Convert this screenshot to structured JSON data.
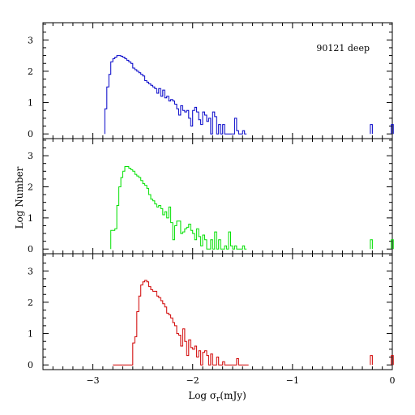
{
  "chart_data": {
    "type": "histogram",
    "xlabel_main": "Log σ",
    "xlabel_sub": "r",
    "xlabel_unit": "(mJy)",
    "ylabel": "Log Number",
    "xlim": [
      -3.5,
      0
    ],
    "ylim": [
      -0.15,
      3.55
    ],
    "x_ticks": [
      -3,
      -2,
      -1,
      0
    ],
    "x_tick_labels": [
      "−3",
      "−2",
      "−1",
      "0"
    ],
    "y_ticks": [
      0,
      1,
      2,
      3
    ],
    "y_tick_labels": [
      "0",
      "1",
      "2",
      "3"
    ],
    "panels": [
      {
        "annotation": "90121 deep",
        "color": "#0000c8",
        "bin_edges": [
          -2.88,
          -2.86,
          -2.84,
          -2.82,
          -2.8,
          -2.78,
          -2.76,
          -2.74,
          -2.72,
          -2.7,
          -2.68,
          -2.66,
          -2.64,
          -2.62,
          -2.6,
          -2.58,
          -2.56,
          -2.54,
          -2.52,
          -2.5,
          -2.48,
          -2.46,
          -2.44,
          -2.42,
          -2.4,
          -2.38,
          -2.36,
          -2.34,
          -2.32,
          -2.3,
          -2.28,
          -2.26,
          -2.24,
          -2.22,
          -2.2,
          -2.18,
          -2.16,
          -2.14,
          -2.12,
          -2.1,
          -2.08,
          -2.06,
          -2.04,
          -2.02,
          -2.0,
          -1.98,
          -1.96,
          -1.94,
          -1.92,
          -1.9,
          -1.88,
          -1.86,
          -1.84,
          -1.82,
          -1.8,
          -1.78,
          -1.76,
          -1.74,
          -1.72,
          -1.7,
          -1.68,
          -1.66,
          -1.64,
          -1.62,
          -1.6,
          -1.58,
          -1.56,
          -1.54,
          -1.52,
          -1.5,
          -1.48,
          -1.46
        ],
        "values": [
          0.8,
          1.5,
          1.9,
          2.3,
          2.4,
          2.45,
          2.5,
          2.5,
          2.48,
          2.45,
          2.4,
          2.35,
          2.3,
          2.25,
          2.1,
          2.05,
          2.0,
          1.95,
          1.9,
          1.85,
          1.7,
          1.65,
          1.6,
          1.55,
          1.5,
          1.45,
          1.3,
          1.45,
          1.2,
          1.4,
          1.15,
          1.2,
          1.05,
          1.1,
          1.05,
          0.95,
          0.8,
          0.6,
          0.9,
          0.75,
          0.7,
          0.75,
          0.5,
          0.25,
          0.75,
          0.85,
          0.7,
          0.45,
          0.3,
          0.7,
          0.6,
          0.4,
          0.5,
          0.0,
          0.7,
          0.55,
          0.0,
          0.3,
          0.0,
          0.3,
          0.0,
          0.0,
          0.0,
          0.0,
          0.0,
          0.5,
          0.1,
          0.0,
          0.0,
          0.1,
          0.0
        ]
      },
      {
        "annotation": "",
        "color": "#00e000",
        "bin_edges": [
          -2.82,
          -2.8,
          -2.78,
          -2.76,
          -2.74,
          -2.72,
          -2.7,
          -2.68,
          -2.66,
          -2.64,
          -2.62,
          -2.6,
          -2.58,
          -2.56,
          -2.54,
          -2.52,
          -2.5,
          -2.48,
          -2.46,
          -2.44,
          -2.42,
          -2.4,
          -2.38,
          -2.36,
          -2.34,
          -2.32,
          -2.3,
          -2.28,
          -2.26,
          -2.24,
          -2.22,
          -2.2,
          -2.18,
          -2.16,
          -2.14,
          -2.12,
          -2.1,
          -2.08,
          -2.06,
          -2.04,
          -2.02,
          -2.0,
          -1.98,
          -1.96,
          -1.94,
          -1.92,
          -1.9,
          -1.88,
          -1.86,
          -1.84,
          -1.82,
          -1.8,
          -1.78,
          -1.76,
          -1.74,
          -1.72,
          -1.7,
          -1.68,
          -1.66,
          -1.64,
          -1.62,
          -1.6,
          -1.58,
          -1.56,
          -1.54,
          -1.52,
          -1.5,
          -1.48,
          -1.46
        ],
        "values": [
          0.6,
          0.6,
          0.65,
          1.4,
          2.0,
          2.3,
          2.5,
          2.65,
          2.65,
          2.6,
          2.55,
          2.5,
          2.4,
          2.35,
          2.3,
          2.2,
          2.1,
          2.05,
          1.95,
          1.75,
          1.6,
          1.55,
          1.45,
          1.35,
          1.4,
          1.3,
          1.1,
          1.2,
          1.0,
          1.35,
          0.85,
          0.3,
          0.75,
          0.9,
          0.9,
          0.5,
          0.55,
          0.65,
          0.7,
          0.8,
          0.6,
          0.5,
          0.3,
          0.65,
          0.4,
          0.1,
          0.45,
          0.3,
          0.0,
          0.0,
          0.3,
          0.0,
          0.55,
          0.0,
          0.3,
          0.0,
          0.0,
          0.1,
          0.0,
          0.55,
          0.1,
          0.0,
          0.1,
          0.0,
          0.0,
          0.0,
          0.1,
          0.0
        ]
      },
      {
        "annotation": "",
        "color": "#d00000",
        "bin_edges": [
          -2.8,
          -2.78,
          -2.76,
          -2.74,
          -2.72,
          -2.7,
          -2.68,
          -2.66,
          -2.64,
          -2.62,
          -2.6,
          -2.58,
          -2.56,
          -2.54,
          -2.52,
          -2.5,
          -2.48,
          -2.46,
          -2.44,
          -2.42,
          -2.4,
          -2.38,
          -2.36,
          -2.34,
          -2.32,
          -2.3,
          -2.28,
          -2.26,
          -2.24,
          -2.22,
          -2.2,
          -2.18,
          -2.16,
          -2.14,
          -2.12,
          -2.1,
          -2.08,
          -2.06,
          -2.04,
          -2.02,
          -2.0,
          -1.98,
          -1.96,
          -1.94,
          -1.92,
          -1.9,
          -1.88,
          -1.86,
          -1.84,
          -1.82,
          -1.8,
          -1.78,
          -1.76,
          -1.74,
          -1.72,
          -1.7,
          -1.68,
          -1.66,
          -1.64,
          -1.62,
          -1.6,
          -1.58,
          -1.56,
          -1.54,
          -1.52,
          -1.5,
          -1.48,
          -1.46,
          -1.44
        ],
        "values": [
          0.0,
          0.0,
          0.0,
          0.0,
          0.0,
          0.0,
          0.0,
          0.0,
          0.0,
          0.0,
          0.7,
          0.9,
          1.7,
          2.2,
          2.55,
          2.65,
          2.7,
          2.65,
          2.5,
          2.4,
          2.35,
          2.35,
          2.2,
          2.15,
          2.05,
          1.95,
          1.85,
          1.65,
          1.6,
          1.5,
          1.35,
          1.25,
          1.0,
          0.95,
          0.6,
          1.15,
          0.75,
          0.3,
          0.8,
          0.55,
          0.5,
          0.6,
          0.25,
          0.45,
          0.0,
          0.4,
          0.45,
          0.3,
          0.0,
          0.35,
          0.0,
          0.0,
          0.25,
          0.0,
          0.0,
          0.1,
          0.0,
          0.0,
          0.0,
          0.0,
          0.0,
          0.0,
          0.2,
          0.0,
          0.0,
          0.0,
          0.0,
          0.0
        ]
      }
    ],
    "tail_points": [
      {
        "x": -0.22,
        "y": 0.3
      },
      {
        "x": -0.01,
        "y": 0.3
      }
    ]
  }
}
